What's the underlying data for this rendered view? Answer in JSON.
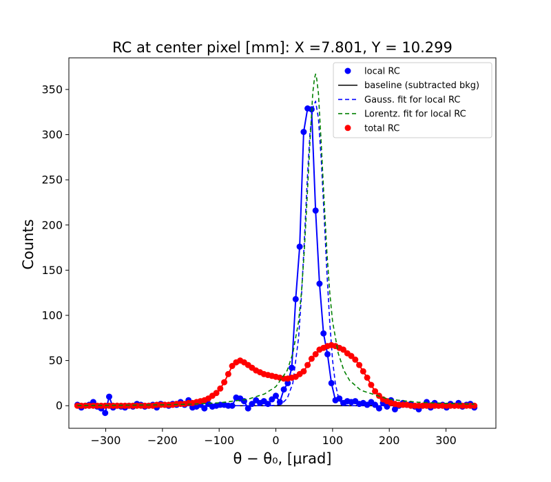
{
  "chart_data": {
    "type": "scatter",
    "title": "RC at center pixel [mm]: X =7.801, Y = 10.299",
    "xlabel": "θ − θ₀, [μrad]",
    "ylabel": "Counts",
    "xlim": [
      -365,
      388
    ],
    "ylim": [
      -25,
      385
    ],
    "xticks": [
      -300,
      -200,
      -100,
      0,
      100,
      200,
      300
    ],
    "yticks": [
      0,
      50,
      100,
      150,
      200,
      250,
      300,
      350
    ],
    "xtick_labels": [
      "−300",
      "−200",
      "−100",
      "0",
      "100",
      "200",
      "300"
    ],
    "ytick_labels": [
      "0",
      "50",
      "100",
      "150",
      "200",
      "250",
      "300",
      "350"
    ],
    "grid": false,
    "legend_position": "top-right",
    "legend": [
      "local RC",
      "baseline (subtracted bkg)",
      "Gauss. fit for local RC",
      "Lorentz. fit for local RC",
      "total RC"
    ],
    "colors": {
      "local_rc": "#0000ff",
      "baseline": "#000000",
      "gauss_fit": "#0000ff",
      "lorentz_fit": "#008000",
      "total_rc": "#ff0000"
    },
    "series": [
      {
        "name": "local RC",
        "style": "markers-line",
        "x": [
          -350,
          -343,
          -336,
          -329,
          -322,
          -315,
          -308,
          -301,
          -294,
          -287,
          -280,
          -273,
          -266,
          -259,
          -252,
          -245,
          -238,
          -231,
          -224,
          -217,
          -210,
          -203,
          -196,
          -189,
          -182,
          -175,
          -168,
          -161,
          -154,
          -147,
          -140,
          -133,
          -126,
          -119,
          -112,
          -105,
          -98,
          -91,
          -84,
          -77,
          -70,
          -63,
          -56,
          -49,
          -42,
          -35,
          -28,
          -21,
          -14,
          -7,
          0,
          7,
          14,
          21,
          28,
          35,
          42,
          49,
          56,
          63,
          70,
          77,
          84,
          91,
          98,
          105,
          112,
          119,
          126,
          133,
          140,
          147,
          154,
          161,
          168,
          175,
          182,
          189,
          196,
          203,
          210,
          217,
          224,
          231,
          238,
          245,
          252,
          259,
          266,
          273,
          280,
          287,
          294,
          301,
          308,
          315,
          322,
          329,
          336,
          343,
          350
        ],
        "y": [
          1,
          -2,
          0,
          1,
          4,
          -1,
          -3,
          -8,
          10,
          -2,
          0,
          -1,
          -2,
          0,
          -1,
          2,
          1,
          -1,
          0,
          1,
          -2,
          2,
          1,
          0,
          2,
          1,
          4,
          1,
          6,
          -2,
          -1,
          1,
          -3,
          2,
          -1,
          0,
          1,
          1,
          0,
          0,
          9,
          8,
          5,
          -3,
          2,
          6,
          3,
          5,
          2,
          7,
          11,
          4,
          18,
          25,
          42,
          118,
          176,
          303,
          329,
          328,
          216,
          135,
          80,
          57,
          25,
          6,
          8,
          3,
          5,
          4,
          5,
          2,
          3,
          1,
          4,
          1,
          -3,
          3,
          -1,
          6,
          -4,
          0,
          3,
          1,
          2,
          -1,
          -4,
          0,
          4,
          -2,
          3,
          0,
          1,
          -2,
          2,
          0,
          3,
          -1,
          1,
          2,
          -2
        ]
      },
      {
        "name": "baseline (subtracted bkg)",
        "style": "line",
        "x": [
          -350,
          350
        ],
        "y": [
          0,
          0
        ]
      },
      {
        "name": "Gauss. fit for local RC",
        "style": "dashed",
        "x": [
          -350,
          -300,
          -250,
          -200,
          -150,
          -100,
          -50,
          -20,
          -10,
          0,
          10,
          20,
          30,
          40,
          45,
          50,
          55,
          60,
          65,
          70,
          75,
          80,
          85,
          90,
          95,
          100,
          105,
          110,
          115,
          120,
          130,
          140,
          150,
          200,
          250,
          300,
          350
        ],
        "y": [
          0,
          0,
          0,
          0,
          0,
          0,
          0,
          0,
          0,
          0.5,
          2,
          8,
          25,
          75,
          120,
          180,
          245,
          300,
          330,
          337,
          318,
          273,
          212,
          148,
          92,
          50,
          24,
          10,
          3,
          1,
          0,
          0,
          0,
          0,
          0,
          0,
          0
        ]
      },
      {
        "name": "Lorentz. fit for local RC",
        "style": "dashed",
        "x": [
          -350,
          -300,
          -250,
          -200,
          -150,
          -100,
          -50,
          -20,
          0,
          20,
          30,
          40,
          45,
          50,
          55,
          60,
          65,
          68,
          70,
          72,
          75,
          80,
          85,
          90,
          95,
          100,
          110,
          120,
          130,
          150,
          200,
          250,
          300,
          350
        ],
        "y": [
          0.3,
          0.4,
          0.6,
          1.0,
          1.7,
          3.2,
          7,
          13,
          21,
          39,
          58,
          93,
          125,
          170,
          228,
          290,
          346,
          362,
          367,
          362,
          346,
          290,
          228,
          170,
          125,
          93,
          58,
          39,
          28,
          17,
          7,
          3.9,
          2.5,
          1.7
        ]
      },
      {
        "name": "total RC",
        "style": "markers-line",
        "x": [
          -350,
          -343,
          -336,
          -329,
          -322,
          -315,
          -308,
          -301,
          -294,
          -287,
          -280,
          -273,
          -266,
          -259,
          -252,
          -245,
          -238,
          -231,
          -224,
          -217,
          -210,
          -203,
          -196,
          -189,
          -182,
          -175,
          -168,
          -161,
          -154,
          -147,
          -140,
          -133,
          -126,
          -119,
          -112,
          -105,
          -98,
          -91,
          -84,
          -77,
          -70,
          -63,
          -56,
          -49,
          -42,
          -35,
          -28,
          -21,
          -14,
          -7,
          0,
          7,
          14,
          21,
          28,
          35,
          42,
          49,
          56,
          63,
          70,
          77,
          84,
          91,
          98,
          105,
          112,
          119,
          126,
          133,
          140,
          147,
          154,
          161,
          168,
          175,
          182,
          189,
          196,
          203,
          210,
          217,
          224,
          231,
          238,
          245,
          252,
          259,
          266,
          273,
          280,
          287,
          294,
          301,
          308,
          315,
          322,
          329,
          336,
          343,
          350
        ],
        "y": [
          0,
          0,
          0,
          0,
          0,
          0,
          0,
          0,
          0,
          0,
          0,
          0,
          0,
          0,
          0,
          0,
          0,
          0,
          0,
          0,
          1,
          1,
          1,
          1,
          1,
          2,
          2,
          2,
          3,
          3,
          4,
          5,
          6,
          8,
          11,
          14,
          19,
          26,
          35,
          44,
          48,
          50,
          48,
          45,
          42,
          39,
          37,
          35,
          34,
          33,
          32,
          31,
          30,
          30,
          31,
          32,
          35,
          38,
          45,
          52,
          57,
          62,
          64,
          66,
          67,
          66,
          64,
          62,
          58,
          55,
          51,
          45,
          38,
          31,
          23,
          16,
          11,
          7,
          5,
          3,
          2,
          1,
          1,
          1,
          0,
          0,
          0,
          0,
          0,
          0,
          0,
          0,
          0,
          0,
          0,
          0,
          0,
          0,
          0,
          0,
          0
        ]
      }
    ]
  }
}
